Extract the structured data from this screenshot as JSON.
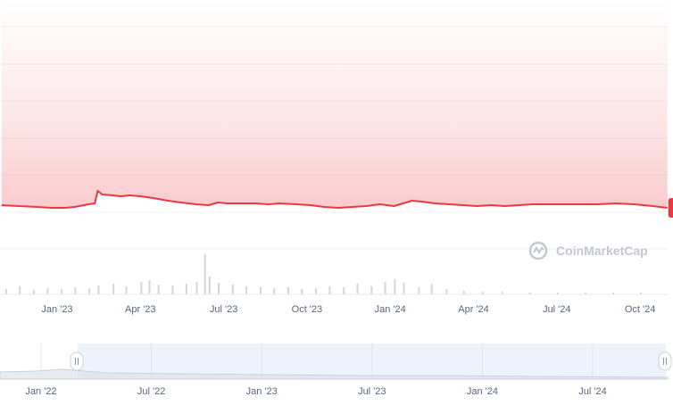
{
  "chart_data": {
    "type": "line",
    "title": "",
    "xlabel": "",
    "ylabel": "",
    "grid": true,
    "legend": "none",
    "x_ticks": [
      "Jan '23",
      "Apr '23",
      "Jul '23",
      "Oct '23",
      "Jan '24",
      "Apr '24",
      "Jul '24",
      "Oct '24"
    ],
    "navigator_ticks": [
      "Jan '22",
      "Jul '22",
      "Jan '23",
      "Jul '23",
      "Jan '24",
      "Jul '24"
    ],
    "series": [
      {
        "values": [
          [
            "2022-11-01",
            230
          ],
          [
            "2022-11-20",
            231
          ],
          [
            "2022-12-10",
            232
          ],
          [
            "2022-12-25",
            233
          ],
          [
            "2023-01-10",
            233
          ],
          [
            "2023-01-20",
            232
          ],
          [
            "2023-02-05",
            229
          ],
          [
            "2023-02-12",
            228
          ],
          [
            "2023-02-15",
            214
          ],
          [
            "2023-02-20",
            218
          ],
          [
            "2023-03-01",
            219
          ],
          [
            "2023-03-10",
            220
          ],
          [
            "2023-03-20",
            219
          ],
          [
            "2023-04-01",
            220
          ],
          [
            "2023-04-15",
            222
          ],
          [
            "2023-05-01",
            225
          ],
          [
            "2023-05-15",
            227
          ],
          [
            "2023-06-01",
            229
          ],
          [
            "2023-06-15",
            230
          ],
          [
            "2023-06-25",
            227
          ],
          [
            "2023-07-05",
            228
          ],
          [
            "2023-07-20",
            228
          ],
          [
            "2023-08-05",
            228
          ],
          [
            "2023-08-20",
            229
          ],
          [
            "2023-09-01",
            228
          ],
          [
            "2023-09-20",
            229
          ],
          [
            "2023-10-05",
            230
          ],
          [
            "2023-10-20",
            232
          ],
          [
            "2023-11-05",
            233
          ],
          [
            "2023-11-20",
            232
          ],
          [
            "2023-12-05",
            231
          ],
          [
            "2023-12-20",
            229
          ],
          [
            "2024-01-05",
            231
          ],
          [
            "2024-01-15",
            228
          ],
          [
            "2024-01-25",
            225
          ],
          [
            "2024-02-05",
            226
          ],
          [
            "2024-02-20",
            228
          ],
          [
            "2024-03-05",
            229
          ],
          [
            "2024-03-20",
            230
          ],
          [
            "2024-04-05",
            231
          ],
          [
            "2024-04-20",
            230
          ],
          [
            "2024-05-05",
            231
          ],
          [
            "2024-05-20",
            230
          ],
          [
            "2024-06-05",
            229
          ],
          [
            "2024-06-20",
            229
          ],
          [
            "2024-07-05",
            229
          ],
          [
            "2024-07-25",
            229
          ],
          [
            "2024-08-15",
            229
          ],
          [
            "2024-09-05",
            228
          ],
          [
            "2024-09-25",
            229
          ],
          [
            "2024-10-15",
            231
          ],
          [
            "2024-10-31",
            233
          ]
        ]
      }
    ],
    "volume": [
      [
        "2022-11-05",
        6
      ],
      [
        "2022-11-20",
        9
      ],
      [
        "2022-12-05",
        5
      ],
      [
        "2022-12-20",
        7
      ],
      [
        "2023-01-05",
        6
      ],
      [
        "2023-01-20",
        8
      ],
      [
        "2023-02-05",
        7
      ],
      [
        "2023-02-15",
        10
      ],
      [
        "2023-03-01",
        12
      ],
      [
        "2023-03-15",
        9
      ],
      [
        "2023-04-01",
        14
      ],
      [
        "2023-04-10",
        16
      ],
      [
        "2023-04-20",
        11
      ],
      [
        "2023-05-05",
        10
      ],
      [
        "2023-05-20",
        12
      ],
      [
        "2023-06-01",
        14
      ],
      [
        "2023-06-10",
        45
      ],
      [
        "2023-06-15",
        20
      ],
      [
        "2023-06-25",
        13
      ],
      [
        "2023-07-10",
        11
      ],
      [
        "2023-07-25",
        9
      ],
      [
        "2023-08-10",
        8
      ],
      [
        "2023-08-25",
        7
      ],
      [
        "2023-09-10",
        8
      ],
      [
        "2023-09-25",
        6
      ],
      [
        "2023-10-10",
        7
      ],
      [
        "2023-10-25",
        9
      ],
      [
        "2023-11-10",
        8
      ],
      [
        "2023-11-25",
        12
      ],
      [
        "2023-12-10",
        9
      ],
      [
        "2023-12-25",
        14
      ],
      [
        "2024-01-05",
        17
      ],
      [
        "2024-01-15",
        13
      ],
      [
        "2024-02-01",
        8
      ],
      [
        "2024-02-15",
        12
      ],
      [
        "2024-03-01",
        6
      ],
      [
        "2024-03-20",
        4
      ],
      [
        "2024-04-10",
        3
      ],
      [
        "2024-05-01",
        3
      ],
      [
        "2024-06-01",
        2
      ],
      [
        "2024-07-01",
        2
      ],
      [
        "2024-08-01",
        2
      ],
      [
        "2024-09-01",
        2
      ],
      [
        "2024-10-01",
        2
      ]
    ],
    "watermark": "CoinMarketCap",
    "colors": {
      "line": "#ea3943",
      "area": "#ea3943",
      "volume": "#d2d5db",
      "navigator": "#eef2fb",
      "grid": "#eff2f5",
      "tick_text": "#58667e"
    }
  }
}
